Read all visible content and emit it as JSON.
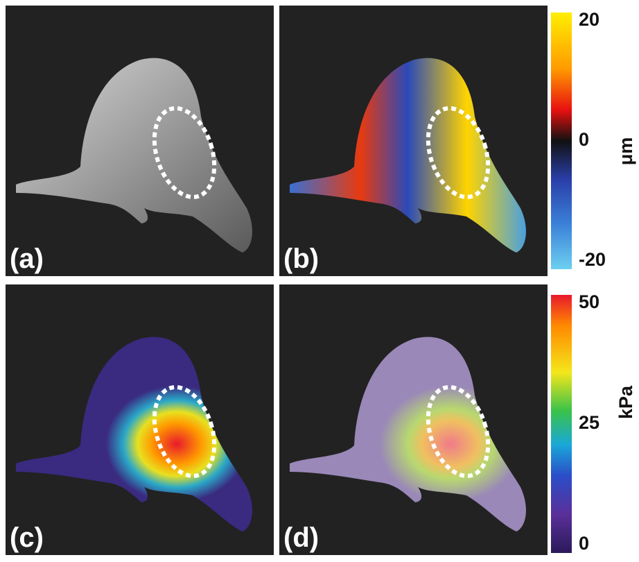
{
  "panels": [
    {
      "label": "(a)"
    },
    {
      "label": "(b)"
    },
    {
      "label": "(c)"
    },
    {
      "label": "(d)"
    }
  ],
  "colorbars": [
    {
      "unit": "μm",
      "range": [
        -20,
        20
      ],
      "ticks": [
        20,
        0,
        -20
      ]
    },
    {
      "unit": "kPa",
      "range": [
        0,
        50
      ],
      "ticks": [
        50,
        25,
        0
      ]
    }
  ]
}
